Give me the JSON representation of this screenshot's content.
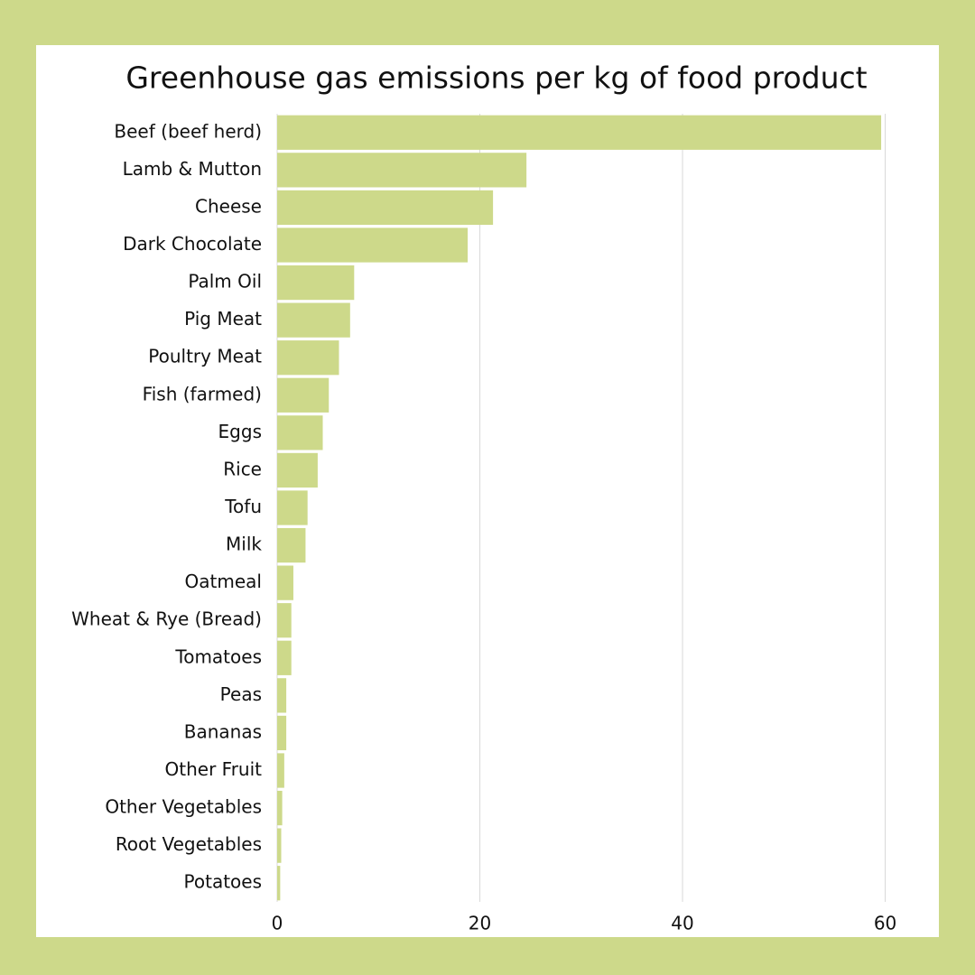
{
  "chart_data": {
    "type": "bar",
    "orientation": "horizontal",
    "title": "Greenhouse gas emissions per kg of food product",
    "categories": [
      "Beef (beef herd)",
      "Lamb & Mutton",
      "Cheese",
      "Dark Chocolate",
      "Palm Oil",
      "Pig Meat",
      "Poultry Meat",
      "Fish (farmed)",
      "Eggs",
      "Rice",
      "Tofu",
      "Milk",
      "Oatmeal",
      "Wheat & Rye (Bread)",
      "Tomatoes",
      "Peas",
      "Bananas",
      "Other Fruit",
      "Other Vegetables",
      "Root Vegetables",
      "Potatoes"
    ],
    "values": [
      59.6,
      24.6,
      21.3,
      18.8,
      7.6,
      7.2,
      6.1,
      5.1,
      4.5,
      4.0,
      3.0,
      2.8,
      1.6,
      1.4,
      1.4,
      0.9,
      0.9,
      0.7,
      0.5,
      0.4,
      0.3
    ],
    "color": "#cdd98a",
    "xlim": [
      0,
      62
    ],
    "xticks": [
      0,
      20,
      40,
      60
    ],
    "grid": true
  }
}
